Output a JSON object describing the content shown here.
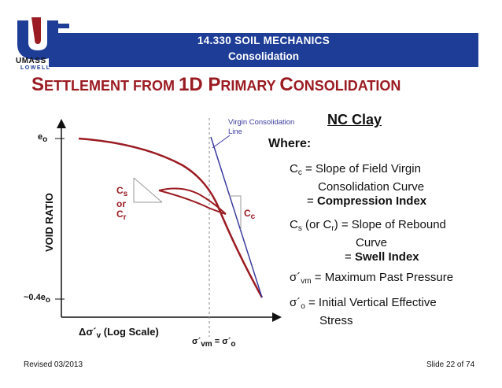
{
  "header": {
    "course": "14.330 SOIL MECHANICS",
    "topic": "Consolidation",
    "logo_text_top": "UMASS",
    "logo_text_bottom": "LOWELL"
  },
  "title": {
    "s_big": "S",
    "part1": "ETTLEMENT FROM ",
    "part2_big": "1D P",
    "part3": "RIMARY ",
    "part4_big": "C",
    "part5": "ONSOLIDATION"
  },
  "diagram": {
    "y_axis_label": "VOID RATIO",
    "e0_label": "e",
    "e0_sub": "o",
    "e_low_label": "~0.4e",
    "e_low_sub": "o",
    "x_axis_label": "Δσ´",
    "x_axis_sub": "v",
    "x_axis_suffix": " (Log Scale)",
    "sigma_vm": "σ´",
    "sigma_vm_sub": "vm",
    "equals": " = σ´",
    "sigma_o_sub": "o",
    "virgin_line_label_1": "Virgin Consolidation",
    "virgin_line_label_2": "Line",
    "cs_label": "C",
    "cs_sub": "s",
    "or_label": "or",
    "cr_label": "C",
    "cr_sub": "r",
    "cc_label": "C",
    "cc_sub": "c"
  },
  "definitions": {
    "nc_clay": "NC Clay",
    "where": "Where:",
    "cc_line1_a": "C",
    "cc_line1_sub": "c",
    "cc_line1_b": " = Slope of Field Virgin",
    "cc_line2": "Consolidation Curve",
    "cc_line3_a": "= ",
    "cc_line3_b": "Compression Index",
    "cs_line1_a": "C",
    "cs_line1_sub": "s",
    "cs_line1_b": " (or C",
    "cs_line1_sub2": "r",
    "cs_line1_c": ") = Slope of Rebound",
    "cs_line2": "Curve",
    "cs_line3_a": "= ",
    "cs_line3_b": "Swell Index",
    "svm_a": "σ´",
    "svm_sub": "vm",
    "svm_b": " = Maximum Past Pressure",
    "so_a": "σ´",
    "so_sub": "o",
    "so_b": " = Initial Vertical Effective",
    "so_line2": "Stress"
  },
  "footer": {
    "revised": "Revised 03/2013",
    "slide": "Slide 22 of 74"
  },
  "colors": {
    "header_blue": "#1e3d96",
    "maroon": "#9b1b22",
    "virgin_line_blue": "#3b3ba0"
  }
}
